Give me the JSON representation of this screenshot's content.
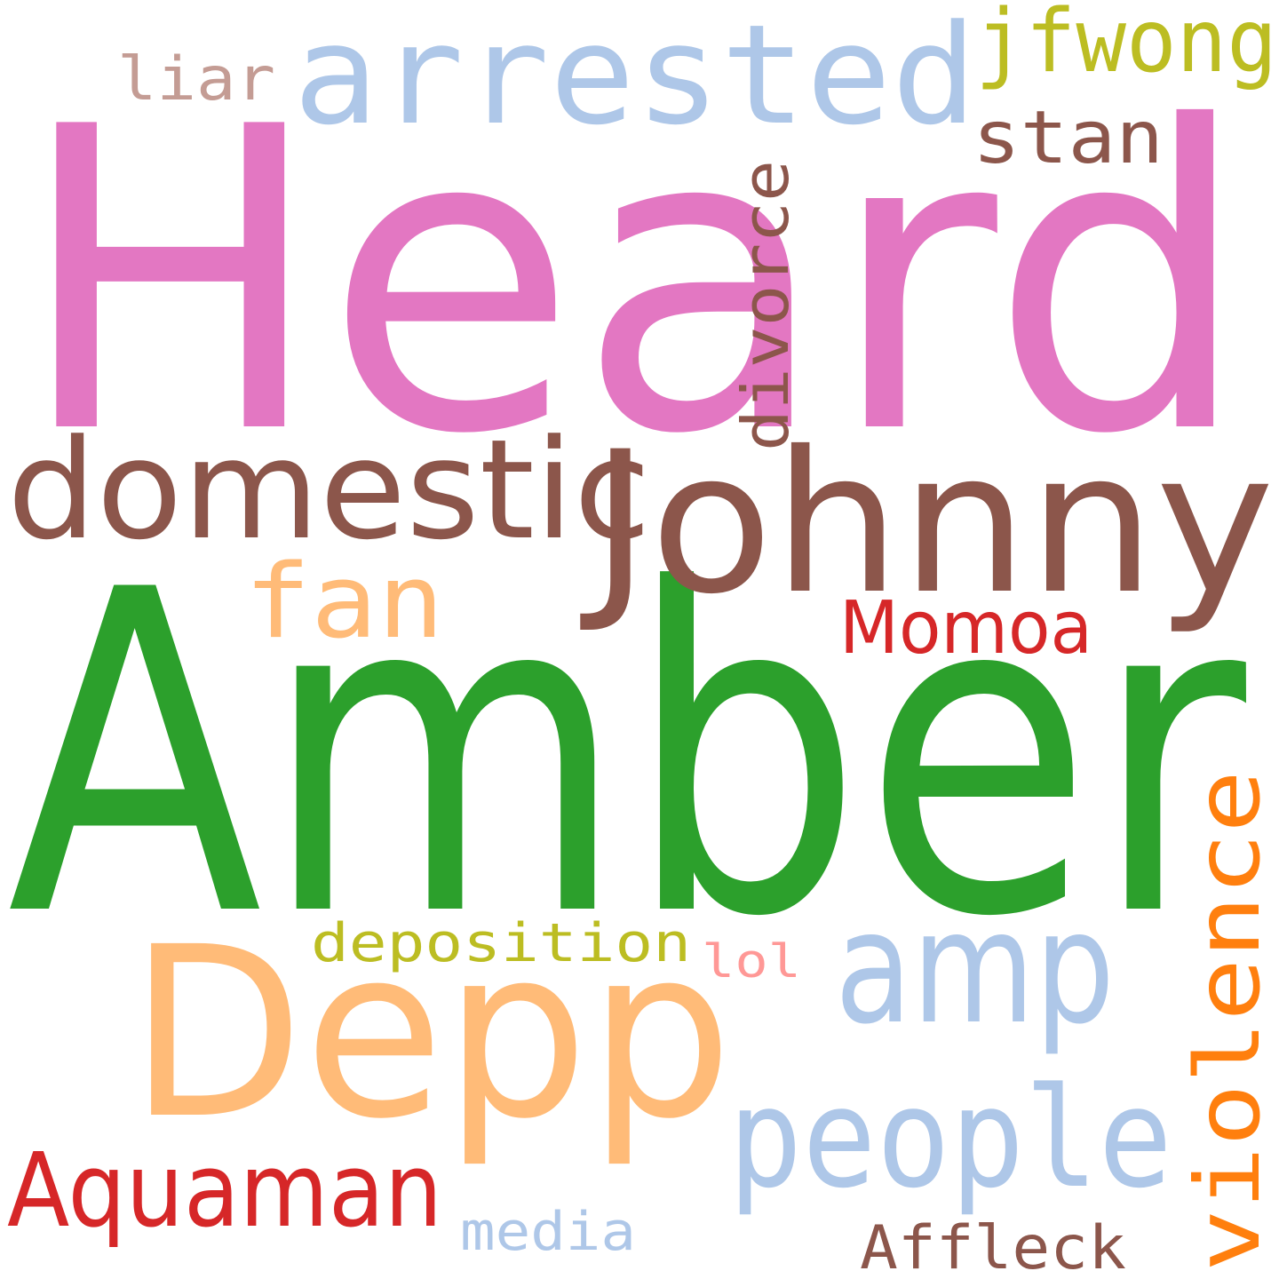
{
  "words": [
    {
      "id": "heard",
      "text": "Heard",
      "color": "#e377c2",
      "orientation": "horizontal"
    },
    {
      "id": "amber",
      "text": "Amber",
      "color": "#2ca02c",
      "orientation": "horizontal"
    },
    {
      "id": "johnny",
      "text": "Johnny",
      "color": "#8c564b",
      "orientation": "horizontal"
    },
    {
      "id": "depp",
      "text": "Depp",
      "color": "#ffbb78",
      "orientation": "horizontal"
    },
    {
      "id": "arrested",
      "text": "arrested",
      "color": "#aec7e8",
      "orientation": "horizontal"
    },
    {
      "id": "domestic",
      "text": "domestic",
      "color": "#8c564b",
      "orientation": "horizontal"
    },
    {
      "id": "amp",
      "text": "amp",
      "color": "#aec7e8",
      "orientation": "horizontal"
    },
    {
      "id": "people",
      "text": "people",
      "color": "#aec7e8",
      "orientation": "horizontal"
    },
    {
      "id": "violence",
      "text": "violence",
      "color": "#ff7f0e",
      "orientation": "vertical"
    },
    {
      "id": "aquaman",
      "text": "Aquaman",
      "color": "#d62728",
      "orientation": "horizontal"
    },
    {
      "id": "fan",
      "text": "fan",
      "color": "#ffbb78",
      "orientation": "horizontal"
    },
    {
      "id": "jfwong",
      "text": "jfwong",
      "color": "#bcbd22",
      "orientation": "horizontal"
    },
    {
      "id": "divorce",
      "text": "divorce",
      "color": "#8c564b",
      "orientation": "vertical"
    },
    {
      "id": "momoa",
      "text": "Momoa",
      "color": "#d62728",
      "orientation": "horizontal"
    },
    {
      "id": "stan",
      "text": "stan",
      "color": "#8c564b",
      "orientation": "horizontal"
    },
    {
      "id": "liar",
      "text": "liar",
      "color": "#c49c94",
      "orientation": "horizontal"
    },
    {
      "id": "deposition",
      "text": "deposition",
      "color": "#bcbd22",
      "orientation": "horizontal"
    },
    {
      "id": "affleck",
      "text": "Affleck",
      "color": "#8c564b",
      "orientation": "horizontal"
    },
    {
      "id": "media",
      "text": "media",
      "color": "#aec7e8",
      "orientation": "horizontal"
    },
    {
      "id": "lol",
      "text": "lol",
      "color": "#ff9896",
      "orientation": "horizontal"
    }
  ]
}
